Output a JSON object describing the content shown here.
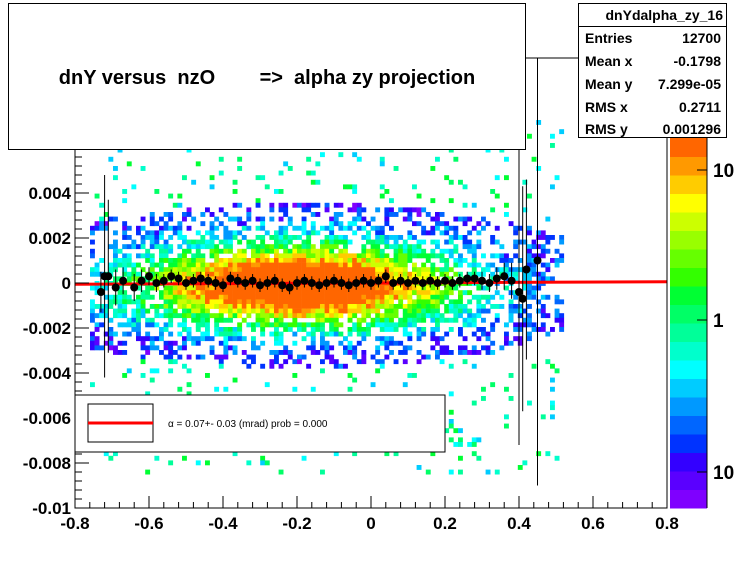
{
  "title": "dnY versus  nzO        =>  alpha zy projection",
  "stats": {
    "name": "dnYdalpha_zy_16",
    "rows": [
      {
        "label": "Entries",
        "value": "12700"
      },
      {
        "label": "Mean x",
        "value": "-0.1798"
      },
      {
        "label": "Mean y",
        "value": "7.299e-05"
      },
      {
        "label": "RMS x",
        "value": "0.2711"
      },
      {
        "label": "RMS y",
        "value": "0.001296"
      }
    ]
  },
  "legend": {
    "label": "α =    0.07+- 0.03 (mrad) prob = 0.000"
  },
  "chart_data": {
    "type": "heatmap",
    "x_ticks": [
      "-0.8",
      "-0.6",
      "-0.4",
      "-0.2",
      "0",
      "0.2",
      "0.4",
      "0.6",
      "0.8"
    ],
    "y_ticks": [
      "-0.01",
      "-0.008",
      "-0.006",
      "-0.004",
      "-0.002",
      "0",
      "0.002",
      "0.004"
    ],
    "z_ticks": [
      "10",
      "1",
      "10"
    ],
    "xlim": [
      -0.8,
      0.8
    ],
    "ylim": [
      -0.01,
      0.01
    ],
    "z_scale": "log",
    "colors": {
      "fit_line": "#ff0000",
      "points": "#000000"
    },
    "fit": {
      "slope": 7e-05,
      "intercept": 0.0
    },
    "profile": {
      "x": [
        -0.73,
        -0.72,
        -0.71,
        -0.69,
        -0.67,
        -0.64,
        -0.62,
        -0.6,
        -0.58,
        -0.56,
        -0.54,
        -0.52,
        -0.5,
        -0.48,
        -0.46,
        -0.44,
        -0.42,
        -0.4,
        -0.38,
        -0.36,
        -0.34,
        -0.32,
        -0.3,
        -0.28,
        -0.26,
        -0.24,
        -0.22,
        -0.2,
        -0.18,
        -0.16,
        -0.14,
        -0.12,
        -0.1,
        -0.08,
        -0.06,
        -0.04,
        -0.02,
        0.0,
        0.02,
        0.04,
        0.06,
        0.08,
        0.1,
        0.12,
        0.14,
        0.16,
        0.18,
        0.2,
        0.22,
        0.24,
        0.26,
        0.28,
        0.3,
        0.32,
        0.34,
        0.36,
        0.38,
        0.4,
        0.41,
        0.42,
        0.45
      ],
      "y": [
        -0.0004,
        0.0003,
        0.0003,
        -0.0002,
        0.0001,
        -0.0002,
        0.0001,
        0.0003,
        0.0,
        0.0001,
        0.0003,
        0.0002,
        0.0,
        0.0001,
        0.0002,
        0.0001,
        0.0,
        -0.0001,
        0.0002,
        0.0001,
        0.0,
        0.0001,
        -0.0001,
        0.0,
        0.0001,
        -0.0001,
        -0.0002,
        0.0,
        0.0001,
        0.0,
        -0.0001,
        0.0,
        0.0001,
        0.0,
        -0.0001,
        0.0,
        0.0001,
        0.0,
        0.0001,
        0.0003,
        0.0,
        0.0001,
        0.0,
        0.0001,
        0.0,
        0.0001,
        0.0,
        0.0001,
        0.0,
        0.0001,
        0.0002,
        0.0002,
        0.0001,
        0.0,
        0.0002,
        0.0003,
        0.0001,
        -0.0004,
        -0.0007,
        0.0006,
        0.001
      ],
      "err": [
        0.0009,
        0.0045,
        0.0034,
        0.0008,
        0.0006,
        0.0006,
        0.0005,
        0.0004,
        0.0004,
        0.0003,
        0.0003,
        0.0003,
        0.0003,
        0.0003,
        0.0003,
        0.0003,
        0.0003,
        0.0003,
        0.0003,
        0.0003,
        0.0003,
        0.0003,
        0.0003,
        0.0003,
        0.0003,
        0.0003,
        0.0003,
        0.0003,
        0.0003,
        0.0003,
        0.0003,
        0.0003,
        0.0003,
        0.0003,
        0.0003,
        0.0003,
        0.0003,
        0.0003,
        0.0003,
        0.0003,
        0.0003,
        0.0003,
        0.0003,
        0.0003,
        0.0003,
        0.0003,
        0.0003,
        0.0003,
        0.0003,
        0.0003,
        0.0003,
        0.0003,
        0.0004,
        0.0004,
        0.0005,
        0.0006,
        0.0008,
        0.0068,
        0.005,
        0.004,
        0.01
      ]
    }
  }
}
